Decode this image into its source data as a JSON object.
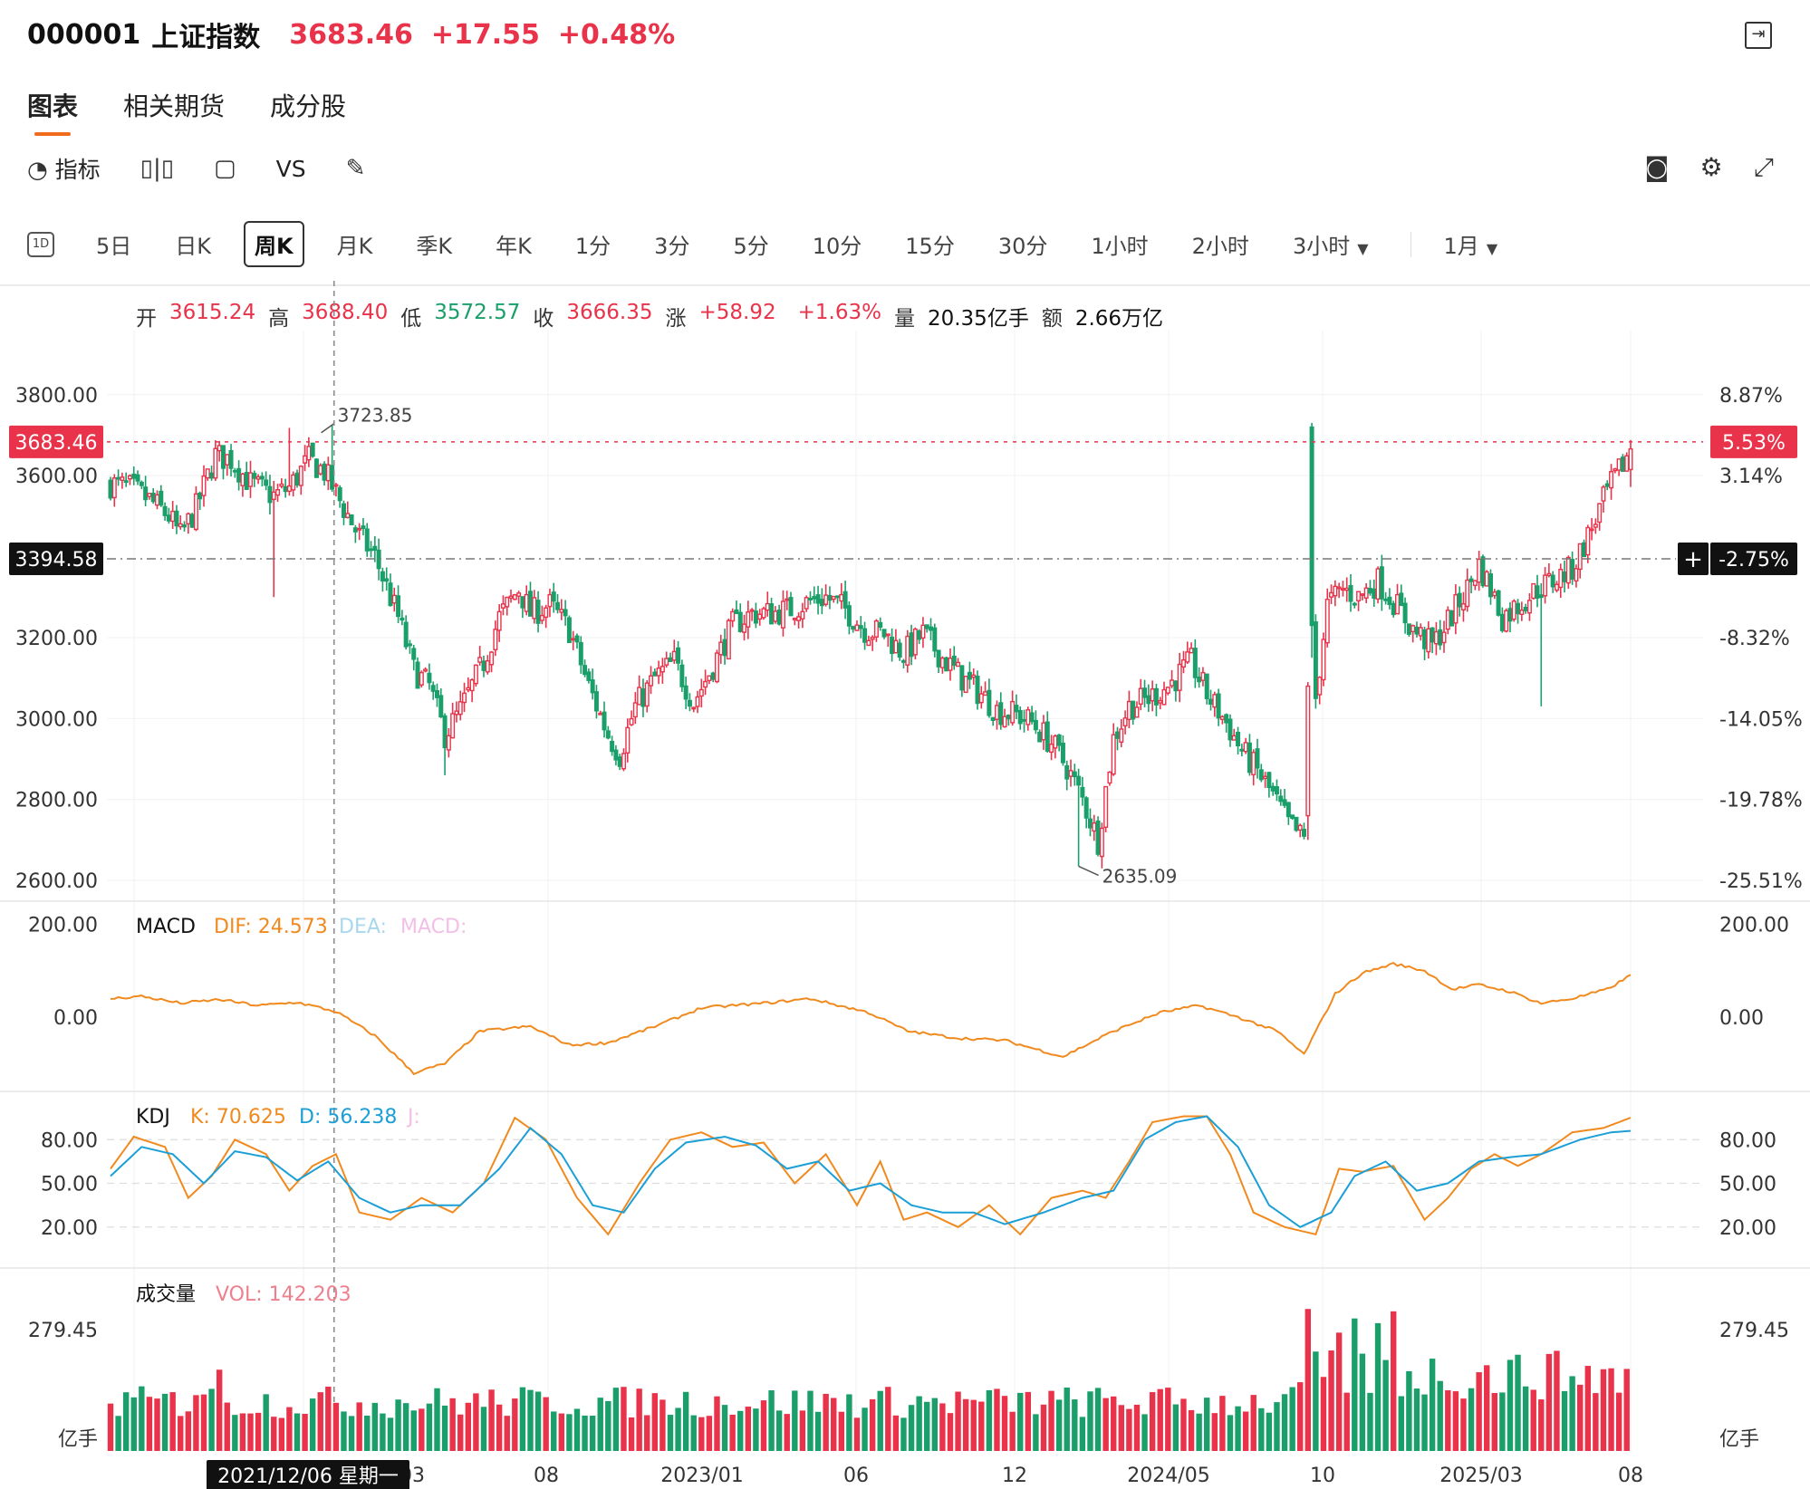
{
  "header": {
    "code": "000001",
    "name": "上证指数",
    "price": "3683.46",
    "change": "+17.55",
    "pct": "+0.48%"
  },
  "tabs": [
    "图表",
    "相关期货",
    "成分股"
  ],
  "toolbar": {
    "indicator_label": "指标",
    "vs_label": "VS"
  },
  "periods": {
    "icon": "1D",
    "items": [
      "5日",
      "日K",
      "周K",
      "月K",
      "季K",
      "年K",
      "1分",
      "3分",
      "5分",
      "10分",
      "15分",
      "30分",
      "1小时",
      "2小时",
      "3小时"
    ],
    "active": "周K",
    "range": "1月"
  },
  "ohlc": {
    "open_label": "开",
    "open": "3615.24",
    "high_label": "高",
    "high": "3688.40",
    "low_label": "低",
    "low": "3572.57",
    "close_label": "收",
    "close": "3666.35",
    "chg_label": "涨",
    "chg": "+58.92",
    "chg_pct": "+1.63%",
    "vol_label": "量",
    "vol": "20.35亿手",
    "amt_label": "额",
    "amt": "2.66万亿"
  },
  "chart_data": {
    "type": "candlestick",
    "price_axis": {
      "ticks": [
        "3800.00",
        "3600.00",
        "3200.00",
        "3000.00",
        "2800.00",
        "2600.00"
      ],
      "tick_values": [
        3800,
        3600,
        3200,
        3000,
        2800,
        2600
      ],
      "ylim": [
        2560,
        3880
      ]
    },
    "pct_axis": {
      "ticks": [
        "8.87%",
        "3.14%",
        "-8.32%",
        "-14.05%",
        "-19.78%",
        "-25.51%"
      ]
    },
    "last_price": {
      "value": 3683.46,
      "label": "3683.46",
      "pct": "5.53%"
    },
    "crosshair": {
      "value": 3394.58,
      "label": "3394.58",
      "pct": "-2.75%",
      "date": "2021/12/06 星期一"
    },
    "max_label": "3723.85",
    "min_label": "2635.09",
    "x_ticks": [
      "03",
      "08",
      "2023/01",
      "06",
      "12",
      "2024/05",
      "10",
      "2025/03",
      "08"
    ],
    "anchors": [
      [
        0,
        3580
      ],
      [
        5,
        3570
      ],
      [
        10,
        3540
      ],
      [
        15,
        3500
      ],
      [
        18,
        3450
      ],
      [
        22,
        3520
      ],
      [
        27,
        3650
      ],
      [
        31,
        3640
      ],
      [
        36,
        3580
      ],
      [
        42,
        3550
      ],
      [
        46,
        3570
      ],
      [
        51,
        3640
      ],
      [
        55,
        3610
      ],
      [
        60,
        3520
      ],
      [
        64,
        3450
      ],
      [
        68,
        3400
      ],
      [
        74,
        3250
      ],
      [
        78,
        3120
      ],
      [
        82,
        3080
      ],
      [
        86,
        2960
      ],
      [
        90,
        3020
      ],
      [
        96,
        3140
      ],
      [
        100,
        3250
      ],
      [
        105,
        3320
      ],
      [
        108,
        3260
      ],
      [
        113,
        3280
      ],
      [
        118,
        3220
      ],
      [
        123,
        3080
      ],
      [
        128,
        2960
      ],
      [
        131,
        2910
      ],
      [
        135,
        3030
      ],
      [
        140,
        3100
      ],
      [
        145,
        3140
      ],
      [
        150,
        3040
      ],
      [
        155,
        3130
      ],
      [
        160,
        3230
      ],
      [
        165,
        3260
      ],
      [
        170,
        3260
      ],
      [
        175,
        3270
      ],
      [
        180,
        3290
      ],
      [
        184,
        3300
      ],
      [
        189,
        3270
      ],
      [
        194,
        3220
      ],
      [
        199,
        3210
      ],
      [
        204,
        3160
      ],
      [
        209,
        3210
      ],
      [
        214,
        3150
      ],
      [
        219,
        3100
      ],
      [
        224,
        3060
      ],
      [
        228,
        3020
      ],
      [
        233,
        3010
      ],
      [
        237,
        2990
      ],
      [
        242,
        2940
      ],
      [
        246,
        2880
      ],
      [
        250,
        2800
      ],
      [
        254,
        2700
      ],
      [
        258,
        2950
      ],
      [
        262,
        3030
      ],
      [
        267,
        3050
      ],
      [
        272,
        3080
      ],
      [
        278,
        3140
      ],
      [
        282,
        3060
      ],
      [
        287,
        2990
      ],
      [
        291,
        2920
      ],
      [
        295,
        2870
      ],
      [
        299,
        2810
      ],
      [
        303,
        2740
      ],
      [
        307,
        2700
      ],
      [
        310,
        3050
      ],
      [
        313,
        3280
      ],
      [
        317,
        3320
      ],
      [
        321,
        3300
      ],
      [
        326,
        3340
      ],
      [
        330,
        3290
      ],
      [
        335,
        3220
      ],
      [
        340,
        3180
      ],
      [
        344,
        3240
      ],
      [
        349,
        3320
      ],
      [
        352,
        3380
      ],
      [
        355,
        3320
      ],
      [
        358,
        3250
      ],
      [
        362,
        3280
      ],
      [
        367,
        3320
      ],
      [
        371,
        3340
      ],
      [
        376,
        3370
      ],
      [
        380,
        3450
      ],
      [
        385,
        3560
      ],
      [
        388,
        3610
      ],
      [
        391,
        3666
      ]
    ],
    "overrides": {
      "308": [
        2760,
        3080,
        2700,
        3090
      ],
      "309": [
        3230,
        3730,
        3150,
        3730
      ]
    },
    "series_count": 392,
    "macd": {
      "title": "MACD",
      "dif_label": "DIF: 24.573",
      "dea_label": "DEA:",
      "macd_label": "MACD:",
      "ticks": [
        "200.00",
        "0.00"
      ],
      "tick_values": [
        200,
        0
      ],
      "ylim": [
        -150,
        240
      ],
      "dif": [
        [
          0,
          40
        ],
        [
          8,
          45
        ],
        [
          18,
          30
        ],
        [
          28,
          38
        ],
        [
          38,
          25
        ],
        [
          48,
          32
        ],
        [
          58,
          12
        ],
        [
          68,
          -40
        ],
        [
          78,
          -120
        ],
        [
          86,
          -100
        ],
        [
          95,
          -30
        ],
        [
          108,
          -20
        ],
        [
          118,
          -60
        ],
        [
          128,
          -55
        ],
        [
          140,
          -20
        ],
        [
          152,
          20
        ],
        [
          168,
          30
        ],
        [
          180,
          40
        ],
        [
          195,
          10
        ],
        [
          205,
          -30
        ],
        [
          218,
          -45
        ],
        [
          230,
          -50
        ],
        [
          245,
          -85
        ],
        [
          258,
          -30
        ],
        [
          270,
          10
        ],
        [
          280,
          25
        ],
        [
          290,
          0
        ],
        [
          300,
          -30
        ],
        [
          307,
          -80
        ],
        [
          315,
          50
        ],
        [
          322,
          95
        ],
        [
          330,
          115
        ],
        [
          338,
          100
        ],
        [
          345,
          60
        ],
        [
          352,
          70
        ],
        [
          360,
          55
        ],
        [
          368,
          30
        ],
        [
          376,
          40
        ],
        [
          385,
          60
        ],
        [
          391,
          90
        ]
      ]
    },
    "kdj": {
      "title": "KDJ",
      "k_label": "K: 70.625",
      "d_label": "D: 56.238",
      "j_label": "J:",
      "ticks": [
        "80.00",
        "50.00",
        "20.00"
      ],
      "tick_values": [
        80,
        50,
        20
      ],
      "ylim": [
        -5,
        110
      ],
      "k": [
        [
          0,
          60
        ],
        [
          6,
          82
        ],
        [
          14,
          75
        ],
        [
          20,
          40
        ],
        [
          26,
          55
        ],
        [
          32,
          80
        ],
        [
          40,
          70
        ],
        [
          46,
          45
        ],
        [
          52,
          62
        ],
        [
          58,
          70
        ],
        [
          64,
          30
        ],
        [
          72,
          25
        ],
        [
          80,
          40
        ],
        [
          88,
          30
        ],
        [
          96,
          50
        ],
        [
          104,
          95
        ],
        [
          112,
          80
        ],
        [
          120,
          40
        ],
        [
          128,
          15
        ],
        [
          136,
          50
        ],
        [
          144,
          80
        ],
        [
          152,
          85
        ],
        [
          160,
          75
        ],
        [
          168,
          78
        ],
        [
          176,
          50
        ],
        [
          184,
          70
        ],
        [
          192,
          35
        ],
        [
          198,
          65
        ],
        [
          204,
          25
        ],
        [
          210,
          30
        ],
        [
          218,
          20
        ],
        [
          226,
          35
        ],
        [
          234,
          15
        ],
        [
          242,
          40
        ],
        [
          250,
          45
        ],
        [
          256,
          40
        ],
        [
          262,
          65
        ],
        [
          268,
          92
        ],
        [
          276,
          96
        ],
        [
          282,
          96
        ],
        [
          288,
          70
        ],
        [
          294,
          30
        ],
        [
          302,
          20
        ],
        [
          310,
          15
        ],
        [
          316,
          60
        ],
        [
          322,
          58
        ],
        [
          330,
          62
        ],
        [
          338,
          25
        ],
        [
          344,
          40
        ],
        [
          350,
          60
        ],
        [
          356,
          70
        ],
        [
          362,
          62
        ],
        [
          368,
          70
        ],
        [
          376,
          85
        ],
        [
          384,
          88
        ],
        [
          391,
          95
        ]
      ],
      "d": [
        [
          0,
          55
        ],
        [
          8,
          75
        ],
        [
          16,
          70
        ],
        [
          24,
          50
        ],
        [
          32,
          72
        ],
        [
          40,
          68
        ],
        [
          48,
          52
        ],
        [
          56,
          65
        ],
        [
          64,
          40
        ],
        [
          72,
          30
        ],
        [
          80,
          35
        ],
        [
          90,
          35
        ],
        [
          100,
          60
        ],
        [
          108,
          88
        ],
        [
          116,
          70
        ],
        [
          124,
          35
        ],
        [
          132,
          30
        ],
        [
          140,
          60
        ],
        [
          148,
          78
        ],
        [
          158,
          82
        ],
        [
          166,
          76
        ],
        [
          174,
          60
        ],
        [
          182,
          65
        ],
        [
          190,
          45
        ],
        [
          198,
          50
        ],
        [
          206,
          35
        ],
        [
          214,
          30
        ],
        [
          222,
          30
        ],
        [
          230,
          22
        ],
        [
          240,
          30
        ],
        [
          250,
          40
        ],
        [
          258,
          45
        ],
        [
          266,
          80
        ],
        [
          274,
          92
        ],
        [
          282,
          96
        ],
        [
          290,
          75
        ],
        [
          298,
          35
        ],
        [
          306,
          20
        ],
        [
          314,
          30
        ],
        [
          320,
          55
        ],
        [
          328,
          65
        ],
        [
          336,
          45
        ],
        [
          344,
          50
        ],
        [
          352,
          65
        ],
        [
          360,
          68
        ],
        [
          368,
          70
        ],
        [
          378,
          80
        ],
        [
          386,
          85
        ],
        [
          391,
          86
        ]
      ]
    },
    "volume": {
      "title": "成交量",
      "vol_label": "VOL: 142.203",
      "ticks": [
        "279.45"
      ],
      "unit": "亿手",
      "ymax": 310,
      "base": 125,
      "spikes": {
        "308": [
          300,
          "up"
        ],
        "309": [
          210,
          "down"
        ],
        "316": [
          250,
          "up"
        ],
        "320": [
          280,
          "down"
        ],
        "326": [
          270,
          "down"
        ],
        "330": [
          295,
          "up"
        ],
        "370": [
          205,
          "up"
        ],
        "385": [
          230,
          "up"
        ]
      }
    },
    "colors": {
      "up": "#e8334a",
      "down": "#1a9f6a",
      "dif": "#f08a1f",
      "k": "#f08a1f",
      "d": "#1b9fd6"
    }
  }
}
